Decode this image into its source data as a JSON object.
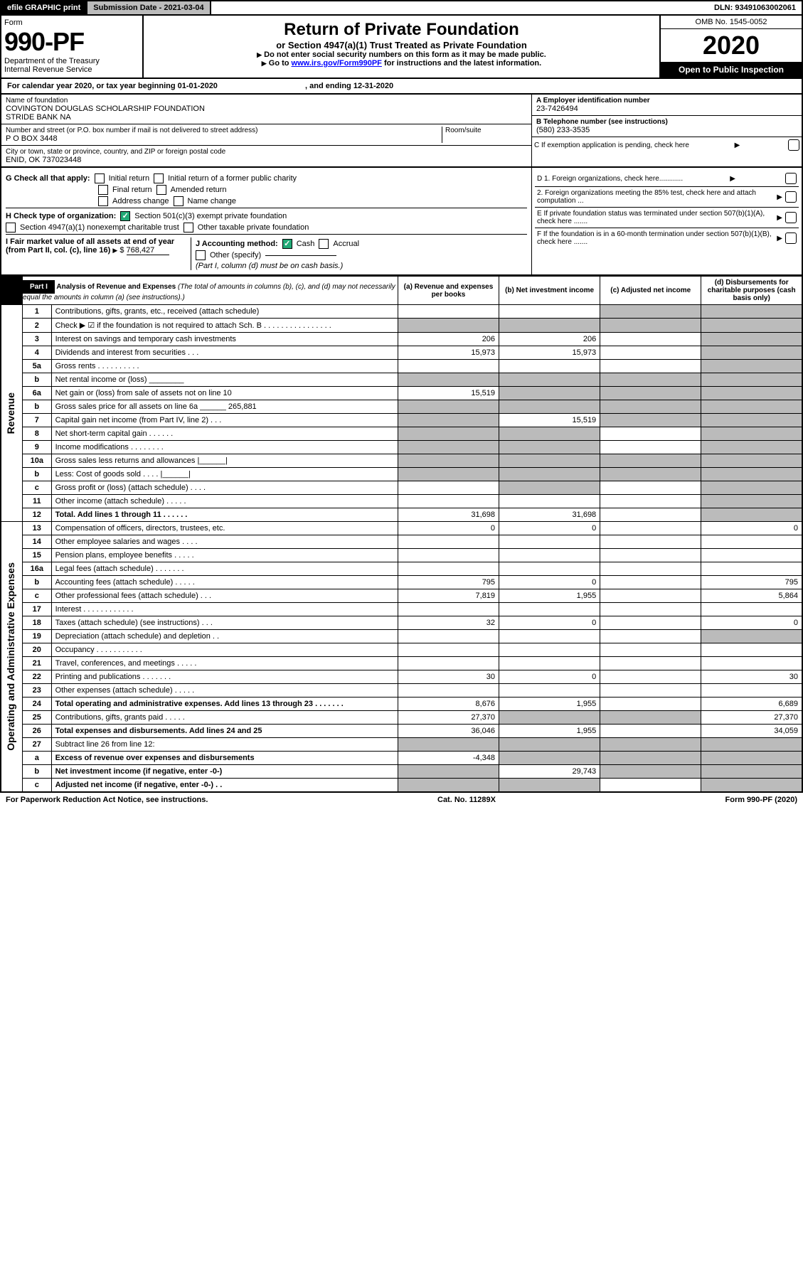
{
  "topbar": {
    "efile": "efile GRAPHIC print",
    "subdate_label": "Submission Date - ",
    "subdate": "2021-03-04",
    "dln_label": "DLN: ",
    "dln": "93491063002061"
  },
  "header": {
    "form_label": "Form",
    "form_no": "990-PF",
    "dept": "Department of the Treasury",
    "irs": "Internal Revenue Service",
    "title": "Return of Private Foundation",
    "subtitle": "or Section 4947(a)(1) Trust Treated as Private Foundation",
    "instr1": "Do not enter social security numbers on this form as it may be made public.",
    "instr2_pre": "Go to ",
    "instr2_link": "www.irs.gov/Form990PF",
    "instr2_post": " for instructions and the latest information.",
    "omb": "OMB No. 1545-0052",
    "year": "2020",
    "open": "Open to Public Inspection"
  },
  "calyear": {
    "pre": "For calendar year 2020, or tax year beginning ",
    "begin": "01-01-2020",
    "mid": " , and ending ",
    "end": "12-31-2020"
  },
  "info": {
    "name_label": "Name of foundation",
    "name1": "COVINGTON DOUGLAS SCHOLARSHIP FOUNDATION",
    "name2": "STRIDE BANK NA",
    "addr_label": "Number and street (or P.O. box number if mail is not delivered to street address)",
    "room_label": "Room/suite",
    "addr": "P O BOX 3448",
    "city_label": "City or town, state or province, country, and ZIP or foreign postal code",
    "city": "ENID, OK 737023448",
    "ein_label": "A Employer identification number",
    "ein": "23-7426494",
    "tel_label": "B Telephone number (see instructions)",
    "tel": "(580) 233-3535",
    "c_label": "C If exemption application is pending, check here"
  },
  "checks": {
    "g_label": "G Check all that apply:",
    "g1": "Initial return",
    "g2": "Initial return of a former public charity",
    "g3": "Final return",
    "g4": "Amended return",
    "g5": "Address change",
    "g6": "Name change",
    "h_label": "H Check type of organization:",
    "h1": "Section 501(c)(3) exempt private foundation",
    "h2": "Section 4947(a)(1) nonexempt charitable trust",
    "h3": "Other taxable private foundation",
    "i_label": "I Fair market value of all assets at end of year (from Part II, col. (c), line 16)",
    "i_val": "768,427",
    "j_label": "J Accounting method:",
    "j1": "Cash",
    "j2": "Accrual",
    "j3": "Other (specify)",
    "j_note": "(Part I, column (d) must be on cash basis.)",
    "d1": "D 1. Foreign organizations, check here............",
    "d2": "2. Foreign organizations meeting the 85% test, check here and attach computation ...",
    "e": "E If private foundation status was terminated under section 507(b)(1)(A), check here .......",
    "f": "F If the foundation is in a 60-month termination under section 507(b)(1)(B), check here ......."
  },
  "part1": {
    "label": "Part I",
    "title": "Analysis of Revenue and Expenses",
    "note": "(The total of amounts in columns (b), (c), and (d) may not necessarily equal the amounts in column (a) (see instructions).)",
    "col_a": "(a) Revenue and expenses per books",
    "col_b": "(b) Net investment income",
    "col_c": "(c) Adjusted net income",
    "col_d": "(d) Disbursements for charitable purposes (cash basis only)"
  },
  "sections": {
    "revenue": "Revenue",
    "expenses": "Operating and Administrative Expenses"
  },
  "rows": [
    {
      "n": "1",
      "d": "Contributions, gifts, grants, etc., received (attach schedule)",
      "a": "",
      "b": "",
      "c": "s",
      "dd": "s"
    },
    {
      "n": "2",
      "d": "Check ▶ ☑ if the foundation is not required to attach Sch. B  .  .  .  .  .  .  .  .  .  .  .  .  .  .  .  .",
      "a": "s",
      "b": "s",
      "c": "s",
      "dd": "s"
    },
    {
      "n": "3",
      "d": "Interest on savings and temporary cash investments",
      "a": "206",
      "b": "206",
      "c": "",
      "dd": "s"
    },
    {
      "n": "4",
      "d": "Dividends and interest from securities   .   .   .",
      "a": "15,973",
      "b": "15,973",
      "c": "",
      "dd": "s"
    },
    {
      "n": "5a",
      "d": "Gross rents   .   .   .   .   .   .   .   .   .   .",
      "a": "",
      "b": "",
      "c": "",
      "dd": "s"
    },
    {
      "n": "b",
      "d": "Net rental income or (loss) ________",
      "a": "s",
      "b": "s",
      "c": "s",
      "dd": "s"
    },
    {
      "n": "6a",
      "d": "Net gain or (loss) from sale of assets not on line 10",
      "a": "15,519",
      "b": "s",
      "c": "s",
      "dd": "s"
    },
    {
      "n": "b",
      "d": "Gross sales price for all assets on line 6a ______ 265,881",
      "a": "s",
      "b": "s",
      "c": "s",
      "dd": "s"
    },
    {
      "n": "7",
      "d": "Capital gain net income (from Part IV, line 2)   .   .   .",
      "a": "s",
      "b": "15,519",
      "c": "s",
      "dd": "s"
    },
    {
      "n": "8",
      "d": "Net short-term capital gain   .   .   .   .   .   .",
      "a": "s",
      "b": "s",
      "c": "",
      "dd": "s"
    },
    {
      "n": "9",
      "d": "Income modifications   .   .   .   .   .   .   .   .",
      "a": "s",
      "b": "s",
      "c": "",
      "dd": "s"
    },
    {
      "n": "10a",
      "d": "Gross sales less returns and allowances  |______|",
      "a": "s",
      "b": "s",
      "c": "s",
      "dd": "s"
    },
    {
      "n": "b",
      "d": "Less: Cost of goods sold   .   .   .   .  |______|",
      "a": "s",
      "b": "s",
      "c": "s",
      "dd": "s"
    },
    {
      "n": "c",
      "d": "Gross profit or (loss) (attach schedule)   .   .   .   .",
      "a": "",
      "b": "s",
      "c": "",
      "dd": "s"
    },
    {
      "n": "11",
      "d": "Other income (attach schedule)   .   .   .   .   .",
      "a": "",
      "b": "",
      "c": "",
      "dd": "s"
    },
    {
      "n": "12",
      "d": "Total. Add lines 1 through 11   .   .   .   .   .   .",
      "a": "31,698",
      "b": "31,698",
      "c": "",
      "dd": "s",
      "bold": true
    }
  ],
  "exp_rows": [
    {
      "n": "13",
      "d": "Compensation of officers, directors, trustees, etc.",
      "a": "0",
      "b": "0",
      "c": "",
      "dd": "0"
    },
    {
      "n": "14",
      "d": "Other employee salaries and wages   .   .   .   .",
      "a": "",
      "b": "",
      "c": "",
      "dd": ""
    },
    {
      "n": "15",
      "d": "Pension plans, employee benefits   .   .   .   .   .",
      "a": "",
      "b": "",
      "c": "",
      "dd": ""
    },
    {
      "n": "16a",
      "d": "Legal fees (attach schedule)   .   .   .   .   .   .   .",
      "a": "",
      "b": "",
      "c": "",
      "dd": ""
    },
    {
      "n": "b",
      "d": "Accounting fees (attach schedule)   .   .   .   .   .",
      "a": "795",
      "b": "0",
      "c": "",
      "dd": "795"
    },
    {
      "n": "c",
      "d": "Other professional fees (attach schedule)   .   .   .",
      "a": "7,819",
      "b": "1,955",
      "c": "",
      "dd": "5,864"
    },
    {
      "n": "17",
      "d": "Interest   .   .   .   .   .   .   .   .   .   .   .   .",
      "a": "",
      "b": "",
      "c": "",
      "dd": ""
    },
    {
      "n": "18",
      "d": "Taxes (attach schedule) (see instructions)   .   .   .",
      "a": "32",
      "b": "0",
      "c": "",
      "dd": "0"
    },
    {
      "n": "19",
      "d": "Depreciation (attach schedule) and depletion   .   .",
      "a": "",
      "b": "",
      "c": "",
      "dd": "s"
    },
    {
      "n": "20",
      "d": "Occupancy   .   .   .   .   .   .   .   .   .   .   .",
      "a": "",
      "b": "",
      "c": "",
      "dd": ""
    },
    {
      "n": "21",
      "d": "Travel, conferences, and meetings   .   .   .   .   .",
      "a": "",
      "b": "",
      "c": "",
      "dd": ""
    },
    {
      "n": "22",
      "d": "Printing and publications   .   .   .   .   .   .   .",
      "a": "30",
      "b": "0",
      "c": "",
      "dd": "30"
    },
    {
      "n": "23",
      "d": "Other expenses (attach schedule)   .   .   .   .   .",
      "a": "",
      "b": "",
      "c": "",
      "dd": ""
    },
    {
      "n": "24",
      "d": "Total operating and administrative expenses. Add lines 13 through 23   .   .   .   .   .   .   .",
      "a": "8,676",
      "b": "1,955",
      "c": "",
      "dd": "6,689",
      "bold": true
    },
    {
      "n": "25",
      "d": "Contributions, gifts, grants paid   .   .   .   .   .",
      "a": "27,370",
      "b": "s",
      "c": "s",
      "dd": "27,370"
    },
    {
      "n": "26",
      "d": "Total expenses and disbursements. Add lines 24 and 25",
      "a": "36,046",
      "b": "1,955",
      "c": "",
      "dd": "34,059",
      "bold": true
    },
    {
      "n": "27",
      "d": "Subtract line 26 from line 12:",
      "a": "s",
      "b": "s",
      "c": "s",
      "dd": "s"
    },
    {
      "n": "a",
      "d": "Excess of revenue over expenses and disbursements",
      "a": "-4,348",
      "b": "s",
      "c": "s",
      "dd": "s",
      "bold": true
    },
    {
      "n": "b",
      "d": "Net investment income (if negative, enter -0-)",
      "a": "s",
      "b": "29,743",
      "c": "s",
      "dd": "s",
      "bold": true
    },
    {
      "n": "c",
      "d": "Adjusted net income (if negative, enter -0-)   .   .",
      "a": "s",
      "b": "s",
      "c": "",
      "dd": "s",
      "bold": true
    }
  ],
  "footer": {
    "left": "For Paperwork Reduction Act Notice, see instructions.",
    "mid": "Cat. No. 11289X",
    "right": "Form 990-PF (2020)"
  }
}
